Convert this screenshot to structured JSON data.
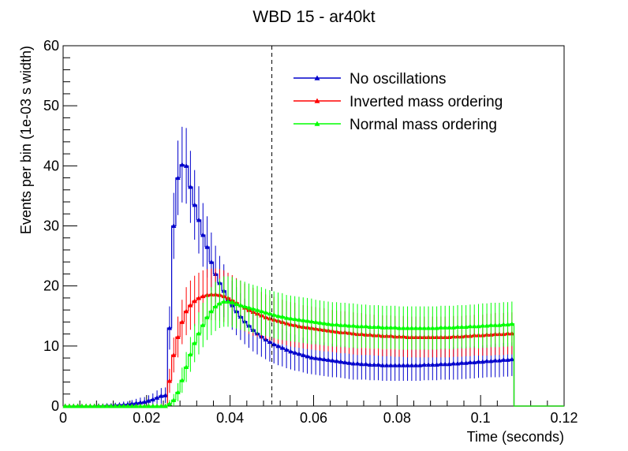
{
  "chart_data": {
    "type": "line",
    "title": "WBD 15 - ar40kt",
    "xlabel": "Time (seconds)",
    "ylabel": "Events per bin (1e-03 s width)",
    "xlim": [
      0,
      0.12
    ],
    "ylim": [
      0,
      60
    ],
    "x_ticks": [
      "0",
      "0.02",
      "0.04",
      "0.06",
      "0.08",
      "0.1",
      "0.12"
    ],
    "y_ticks": [
      "0",
      "10",
      "20",
      "30",
      "40",
      "50",
      "60"
    ],
    "grid": false,
    "legend_position": "top-right",
    "reference_line": {
      "x": 0.05,
      "style": "dashed",
      "color": "#000000"
    },
    "x": [
      0.001,
      0.002,
      0.003,
      0.004,
      0.005,
      0.006,
      0.007,
      0.008,
      0.009,
      0.01,
      0.011,
      0.012,
      0.013,
      0.014,
      0.015,
      0.016,
      0.017,
      0.018,
      0.019,
      0.02,
      0.021,
      0.022,
      0.023,
      0.024,
      0.025,
      0.026,
      0.027,
      0.028,
      0.029,
      0.03,
      0.031,
      0.032,
      0.033,
      0.034,
      0.035,
      0.036,
      0.037,
      0.038,
      0.039,
      0.04,
      0.041,
      0.042,
      0.043,
      0.044,
      0.045,
      0.046,
      0.047,
      0.048,
      0.049,
      0.05,
      0.051,
      0.052,
      0.053,
      0.054,
      0.055,
      0.056,
      0.057,
      0.058,
      0.059,
      0.06,
      0.061,
      0.062,
      0.063,
      0.064,
      0.065,
      0.066,
      0.067,
      0.068,
      0.069,
      0.07,
      0.071,
      0.072,
      0.073,
      0.074,
      0.075,
      0.076,
      0.077,
      0.078,
      0.079,
      0.08,
      0.081,
      0.082,
      0.083,
      0.084,
      0.085,
      0.086,
      0.087,
      0.088,
      0.089,
      0.09,
      0.091,
      0.092,
      0.093,
      0.094,
      0.095,
      0.096,
      0.097,
      0.098,
      0.099,
      0.1,
      0.101,
      0.102,
      0.103,
      0.104,
      0.105,
      0.106,
      0.107,
      0.108
    ],
    "series": [
      {
        "name": "No oscillations",
        "color": "#0000cc",
        "values": [
          0,
          0,
          0,
          0,
          0,
          0,
          0,
          0,
          0.05,
          0.05,
          0.1,
          0.1,
          0.15,
          0.2,
          0.25,
          0.3,
          0.4,
          0.5,
          0.6,
          0.7,
          0.9,
          1.1,
          1.4,
          1.7,
          1.8,
          13.0,
          30.0,
          38.0,
          40.2,
          40.0,
          36.5,
          33.5,
          31.0,
          28.5,
          26.5,
          24.0,
          22.0,
          20.5,
          19.2,
          17.8,
          16.8,
          15.8,
          14.9,
          14.1,
          13.4,
          12.7,
          12.1,
          11.6,
          11.1,
          10.7,
          10.3,
          10.0,
          9.7,
          9.4,
          9.1,
          8.9,
          8.7,
          8.5,
          8.3,
          8.1,
          8.0,
          7.9,
          7.8,
          7.7,
          7.6,
          7.5,
          7.4,
          7.3,
          7.2,
          7.1,
          7.1,
          7.0,
          7.0,
          6.9,
          6.9,
          6.9,
          6.8,
          6.8,
          6.8,
          6.8,
          6.8,
          6.8,
          6.8,
          6.8,
          6.8,
          6.8,
          6.9,
          6.9,
          6.9,
          6.9,
          7.0,
          7.0,
          7.0,
          7.1,
          7.1,
          7.2,
          7.2,
          7.3,
          7.3,
          7.4,
          7.4,
          7.5,
          7.5,
          7.6,
          7.6,
          7.7,
          7.7,
          7.8
        ],
        "errors": [
          0,
          0,
          0,
          0,
          0,
          0,
          0,
          0,
          0.2,
          0.2,
          0.3,
          0.3,
          0.4,
          0.4,
          0.5,
          0.5,
          0.6,
          0.7,
          0.8,
          0.8,
          0.9,
          1.0,
          1.2,
          1.3,
          1.3,
          3.6,
          5.5,
          6.2,
          6.3,
          6.3,
          6.0,
          5.8,
          5.6,
          5.3,
          5.1,
          4.9,
          4.7,
          4.5,
          4.4,
          4.2,
          4.1,
          4.0,
          3.9,
          3.8,
          3.7,
          3.6,
          3.5,
          3.4,
          3.3,
          3.3,
          3.2,
          3.2,
          3.1,
          3.1,
          3.0,
          3.0,
          2.9,
          2.9,
          2.9,
          2.8,
          2.8,
          2.8,
          2.8,
          2.8,
          2.8,
          2.7,
          2.7,
          2.7,
          2.7,
          2.7,
          2.7,
          2.6,
          2.6,
          2.6,
          2.6,
          2.6,
          2.6,
          2.6,
          2.6,
          2.6,
          2.6,
          2.6,
          2.6,
          2.6,
          2.6,
          2.6,
          2.6,
          2.6,
          2.6,
          2.6,
          2.6,
          2.6,
          2.6,
          2.7,
          2.7,
          2.7,
          2.7,
          2.7,
          2.7,
          2.7,
          2.7,
          2.7,
          2.7,
          2.8,
          2.8,
          2.8,
          2.8,
          2.8
        ]
      },
      {
        "name": "Inverted mass ordering",
        "color": "#ff0000",
        "values": [
          0,
          0,
          0,
          0,
          0,
          0,
          0,
          0,
          0,
          0,
          0,
          0,
          0,
          0,
          0,
          0,
          0,
          0,
          0,
          0,
          0,
          0,
          0,
          0,
          0,
          4.2,
          8.5,
          11.5,
          14.0,
          15.8,
          16.8,
          17.5,
          18.0,
          18.3,
          18.5,
          18.6,
          18.6,
          18.5,
          18.3,
          18.0,
          17.6,
          17.2,
          16.8,
          16.4,
          16.0,
          15.7,
          15.4,
          15.1,
          14.8,
          14.6,
          14.4,
          14.2,
          14.0,
          13.8,
          13.6,
          13.5,
          13.3,
          13.2,
          13.1,
          13.0,
          12.9,
          12.8,
          12.7,
          12.6,
          12.5,
          12.4,
          12.3,
          12.3,
          12.2,
          12.1,
          12.0,
          12.0,
          11.9,
          11.9,
          11.8,
          11.8,
          11.7,
          11.7,
          11.7,
          11.6,
          11.6,
          11.6,
          11.5,
          11.5,
          11.5,
          11.5,
          11.5,
          11.5,
          11.5,
          11.5,
          11.5,
          11.5,
          11.5,
          11.6,
          11.6,
          11.6,
          11.7,
          11.7,
          11.8,
          11.8,
          11.8,
          11.9,
          11.9,
          12.0,
          12.0,
          12.0,
          12.1,
          12.1
        ],
        "errors": [
          0,
          0,
          0,
          0,
          0,
          0,
          0,
          0,
          0,
          0,
          0,
          0,
          0,
          0,
          0,
          0,
          0,
          0,
          0,
          0,
          0,
          0,
          0,
          0,
          0,
          2.0,
          2.9,
          3.4,
          3.7,
          4.0,
          4.1,
          4.2,
          4.2,
          4.3,
          4.3,
          4.3,
          4.3,
          4.3,
          4.3,
          4.2,
          4.2,
          4.1,
          4.1,
          4.0,
          4.0,
          4.0,
          3.9,
          3.9,
          3.8,
          3.8,
          3.8,
          3.8,
          3.7,
          3.7,
          3.7,
          3.7,
          3.6,
          3.6,
          3.6,
          3.6,
          3.6,
          3.6,
          3.6,
          3.5,
          3.5,
          3.5,
          3.5,
          3.5,
          3.5,
          3.5,
          3.5,
          3.5,
          3.4,
          3.4,
          3.4,
          3.4,
          3.4,
          3.4,
          3.4,
          3.4,
          3.4,
          3.4,
          3.4,
          3.4,
          3.4,
          3.4,
          3.4,
          3.4,
          3.4,
          3.4,
          3.4,
          3.4,
          3.4,
          3.4,
          3.4,
          3.4,
          3.4,
          3.4,
          3.4,
          3.4,
          3.4,
          3.5,
          3.5,
          3.5,
          3.5,
          3.5,
          3.5,
          3.5
        ]
      },
      {
        "name": "Normal mass ordering",
        "color": "#00ff00",
        "values": [
          0,
          0,
          0,
          0,
          0,
          0,
          0,
          0,
          0,
          0,
          0,
          0,
          0,
          0,
          0,
          0,
          0,
          0,
          0,
          0,
          0,
          0,
          0,
          0,
          0,
          0.4,
          1.0,
          2.3,
          4.3,
          6.5,
          8.6,
          10.5,
          12.1,
          13.5,
          14.8,
          15.8,
          16.6,
          17.1,
          17.4,
          17.4,
          17.3,
          17.0,
          16.8,
          16.6,
          16.4,
          16.2,
          16.0,
          15.8,
          15.6,
          15.4,
          15.2,
          15.0,
          14.9,
          14.7,
          14.6,
          14.5,
          14.4,
          14.3,
          14.2,
          14.1,
          14.0,
          13.9,
          13.8,
          13.7,
          13.6,
          13.6,
          13.5,
          13.5,
          13.4,
          13.4,
          13.3,
          13.3,
          13.3,
          13.2,
          13.2,
          13.2,
          13.1,
          13.1,
          13.1,
          13.1,
          13.0,
          13.0,
          13.0,
          13.0,
          13.0,
          13.0,
          13.0,
          13.0,
          13.0,
          13.0,
          13.1,
          13.1,
          13.1,
          13.1,
          13.2,
          13.2,
          13.2,
          13.3,
          13.3,
          13.3,
          13.4,
          13.4,
          13.5,
          13.5,
          13.5,
          13.6,
          13.6,
          13.7
        ],
        "errors": [
          0,
          0,
          0,
          0,
          0,
          0,
          0,
          0,
          0,
          0,
          0,
          0,
          0,
          0,
          0,
          0,
          0,
          0,
          0,
          0,
          0,
          0,
          0,
          0,
          0,
          0.6,
          1.0,
          1.5,
          2.1,
          2.5,
          2.9,
          3.2,
          3.5,
          3.7,
          3.8,
          4.0,
          4.1,
          4.1,
          4.2,
          4.2,
          4.2,
          4.1,
          4.1,
          4.1,
          4.0,
          4.0,
          4.0,
          4.0,
          3.9,
          3.9,
          3.9,
          3.9,
          3.9,
          3.8,
          3.8,
          3.8,
          3.8,
          3.8,
          3.8,
          3.8,
          3.7,
          3.7,
          3.7,
          3.7,
          3.7,
          3.7,
          3.7,
          3.7,
          3.7,
          3.7,
          3.7,
          3.6,
          3.6,
          3.6,
          3.6,
          3.6,
          3.6,
          3.6,
          3.6,
          3.6,
          3.6,
          3.6,
          3.6,
          3.6,
          3.6,
          3.6,
          3.6,
          3.6,
          3.6,
          3.6,
          3.6,
          3.6,
          3.6,
          3.6,
          3.6,
          3.6,
          3.6,
          3.6,
          3.6,
          3.7,
          3.7,
          3.7,
          3.7,
          3.7,
          3.7,
          3.7,
          3.7,
          3.7
        ]
      }
    ]
  }
}
